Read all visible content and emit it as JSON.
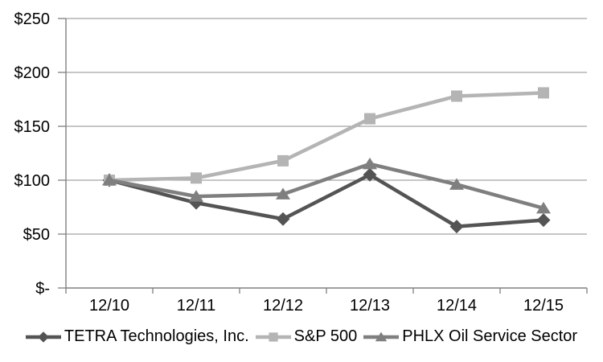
{
  "chart_data": {
    "type": "line",
    "title": "",
    "xlabel": "",
    "ylabel": "",
    "x_categories": [
      "12/10",
      "12/11",
      "12/12",
      "12/13",
      "12/14",
      "12/15"
    ],
    "y_axis_ticks": [
      {
        "label": "$250",
        "value": 250
      },
      {
        "label": "$200",
        "value": 200
      },
      {
        "label": "$150",
        "value": 150
      },
      {
        "label": "$100",
        "value": 100
      },
      {
        "label": "$50",
        "value": 50
      },
      {
        "label": "$-",
        "value": 0
      }
    ],
    "ylim": [
      0,
      250
    ],
    "grid": "horizontal",
    "legend_position": "bottom",
    "series": [
      {
        "name": "TETRA Technologies, Inc.",
        "marker": "diamond",
        "color": "#545454",
        "values": [
          100,
          79,
          64,
          105,
          57,
          63
        ]
      },
      {
        "name": "S&P 500",
        "marker": "square",
        "color": "#b4b4b4",
        "values": [
          100,
          102,
          118,
          157,
          178,
          181
        ]
      },
      {
        "name": "PHLX Oil Service Sector",
        "marker": "triangle",
        "color": "#7f7f7f",
        "values": [
          100,
          85,
          87,
          115,
          96,
          74
        ]
      }
    ]
  },
  "colors": {
    "background": "#ffffff",
    "axis": "#808080",
    "gridline": "#8c8c8c",
    "label_text": "#000000"
  }
}
